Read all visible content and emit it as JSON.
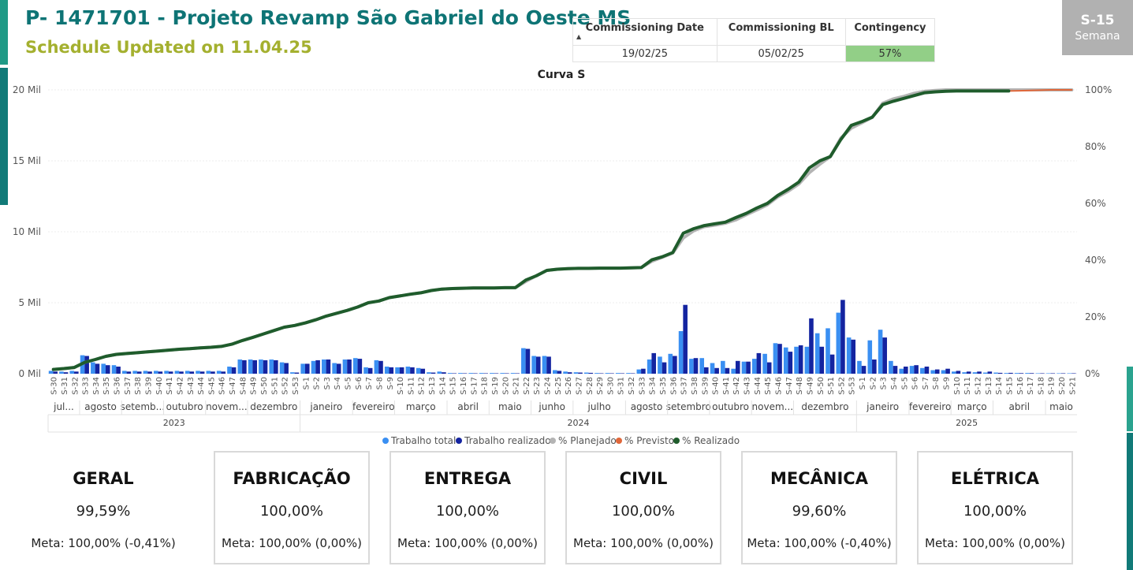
{
  "header": {
    "title": "P- 1471701 - Projeto Revamp São Gabriel do Oeste MS",
    "subtitle": "Schedule Updated on 11.04.25"
  },
  "kpi_table": {
    "headers": [
      "Commissioning Date",
      "Commissioning BL",
      "Contingency"
    ],
    "values": [
      "19/02/25",
      "05/02/25",
      "57%"
    ],
    "sort_icon": "sort-up-icon"
  },
  "week_badge": {
    "week": "S-15",
    "label": "Semana"
  },
  "colors": {
    "teal": "#0e7475",
    "olive": "#a4b02f",
    "bar_total": "#3a8ff2",
    "bar_done": "#1424a0",
    "planned": "#b4b4b4",
    "forecast": "#e0673a",
    "actual": "#1f5c2c",
    "green_cell": "#92cf87"
  },
  "chart_data": {
    "type": "bar",
    "title": "Curva S",
    "y_left": {
      "ticks": [
        "0 Mil",
        "5 Mil",
        "10 Mil",
        "15 Mil",
        "20 Mil"
      ],
      "range": [
        0,
        20000
      ]
    },
    "y_right": {
      "ticks": [
        "0%",
        "20%",
        "40%",
        "60%",
        "80%",
        "100%"
      ],
      "range": [
        0,
        100
      ]
    },
    "categories": [
      "S-30",
      "S-31",
      "S-32",
      "S-33",
      "S-34",
      "S-35",
      "S-36",
      "S-37",
      "S-38",
      "S-39",
      "S-40",
      "S-41",
      "S-42",
      "S-43",
      "S-44",
      "S-45",
      "S-46",
      "S-47",
      "S-48",
      "S-49",
      "S-50",
      "S-51",
      "S-52",
      "S-53",
      "S-1",
      "S-2",
      "S-3",
      "S-4",
      "S-5",
      "S-6",
      "S-7",
      "S-8",
      "S-9",
      "S-10",
      "S-11",
      "S-12",
      "S-13",
      "S-14",
      "S-15",
      "S-16",
      "S-17",
      "S-18",
      "S-19",
      "S-20",
      "S-21",
      "S-22",
      "S-23",
      "S-24",
      "S-25",
      "S-26",
      "S-27",
      "S-28",
      "S-29",
      "S-30",
      "S-31",
      "S-32",
      "S-33",
      "S-34",
      "S-35",
      "S-36",
      "S-37",
      "S-38",
      "S-39",
      "S-40",
      "S-41",
      "S-42",
      "S-43",
      "S-44",
      "S-45",
      "S-46",
      "S-47",
      "S-48",
      "S-49",
      "S-50",
      "S-51",
      "S-52",
      "S-53",
      "S-1",
      "S-2",
      "S-3",
      "S-4",
      "S-5",
      "S-6",
      "S-7",
      "S-8",
      "S-9",
      "S-10",
      "S-11",
      "S-12",
      "S-13",
      "S-14",
      "S-15",
      "S-16",
      "S-17",
      "S-18",
      "S-19",
      "S-20",
      "S-21"
    ],
    "months": [
      {
        "label": "jul...",
        "start": 0,
        "end": 2
      },
      {
        "label": "agosto",
        "start": 3,
        "end": 6
      },
      {
        "label": "setemb...",
        "start": 7,
        "end": 10
      },
      {
        "label": "outubro",
        "start": 11,
        "end": 14
      },
      {
        "label": "novem...",
        "start": 15,
        "end": 18
      },
      {
        "label": "dezembro",
        "start": 19,
        "end": 23
      },
      {
        "label": "janeiro",
        "start": 24,
        "end": 28
      },
      {
        "label": "fevereiro",
        "start": 29,
        "end": 32
      },
      {
        "label": "março",
        "start": 33,
        "end": 37
      },
      {
        "label": "abril",
        "start": 38,
        "end": 41
      },
      {
        "label": "maio",
        "start": 42,
        "end": 45
      },
      {
        "label": "junho",
        "start": 46,
        "end": 49
      },
      {
        "label": "julho",
        "start": 50,
        "end": 54
      },
      {
        "label": "agosto",
        "start": 55,
        "end": 58
      },
      {
        "label": "setembro",
        "start": 59,
        "end": 62
      },
      {
        "label": "outubro",
        "start": 63,
        "end": 66
      },
      {
        "label": "novem...",
        "start": 67,
        "end": 70
      },
      {
        "label": "dezembro",
        "start": 71,
        "end": 76
      },
      {
        "label": "janeiro",
        "start": 77,
        "end": 81
      },
      {
        "label": "fevereiro",
        "start": 82,
        "end": 85
      },
      {
        "label": "março",
        "start": 86,
        "end": 89
      },
      {
        "label": "abril",
        "start": 90,
        "end": 94
      },
      {
        "label": "maio",
        "start": 95,
        "end": 97
      }
    ],
    "years": [
      {
        "label": "2023",
        "start": 0,
        "end": 23
      },
      {
        "label": "2024",
        "start": 24,
        "end": 76
      },
      {
        "label": "2025",
        "start": 77,
        "end": 97
      }
    ],
    "series": [
      {
        "name": "Trabalho total",
        "type": "bar",
        "values": [
          200,
          150,
          200,
          1300,
          800,
          700,
          600,
          200,
          200,
          200,
          200,
          200,
          200,
          200,
          200,
          200,
          200,
          500,
          1000,
          1000,
          1000,
          1000,
          800,
          100,
          700,
          900,
          1000,
          750,
          1000,
          1100,
          450,
          950,
          500,
          450,
          500,
          400,
          100,
          150,
          50,
          50,
          50,
          50,
          50,
          50,
          50,
          1800,
          1250,
          1250,
          250,
          150,
          100,
          80,
          50,
          50,
          50,
          50,
          300,
          1000,
          1200,
          1400,
          3000,
          1050,
          1100,
          750,
          900,
          350,
          850,
          1050,
          1400,
          2150,
          1850,
          1900,
          1900,
          2850,
          3200,
          4300,
          2550,
          900,
          2350,
          3100,
          900,
          350,
          550,
          400,
          250,
          250,
          150,
          100,
          100,
          80,
          80,
          50,
          50,
          50,
          30,
          30,
          30,
          30
        ]
      },
      {
        "name": "Trabalho realizado",
        "type": "bar",
        "values": [
          150,
          100,
          150,
          1250,
          700,
          600,
          500,
          150,
          150,
          150,
          150,
          150,
          150,
          150,
          150,
          150,
          150,
          450,
          950,
          950,
          950,
          950,
          750,
          80,
          700,
          950,
          1000,
          700,
          1000,
          1050,
          400,
          900,
          450,
          450,
          450,
          350,
          80,
          100,
          30,
          30,
          30,
          30,
          30,
          30,
          30,
          1750,
          1200,
          1200,
          200,
          100,
          80,
          60,
          30,
          30,
          30,
          30,
          350,
          1450,
          800,
          1250,
          4850,
          1100,
          450,
          400,
          400,
          900,
          850,
          1450,
          800,
          2100,
          1550,
          2000,
          3900,
          1900,
          1350,
          5200,
          2400,
          550,
          1000,
          2550,
          550,
          500,
          600,
          500,
          300,
          350,
          200,
          150,
          150,
          150,
          60,
          60,
          40,
          40,
          30,
          30,
          30,
          30
        ]
      },
      {
        "name": "% Planejado",
        "type": "line",
        "values": [
          1.5,
          1.8,
          2.2,
          4,
          5,
          6.1,
          6.8,
          7.1,
          7.4,
          7.7,
          8,
          8.3,
          8.6,
          8.8,
          9.1,
          9.3,
          9.6,
          10.4,
          11.7,
          12.8,
          14,
          15.2,
          16.4,
          17,
          17.9,
          19,
          20.3,
          21.3,
          22.3,
          23.5,
          25,
          25.6,
          26.8,
          27.4,
          28,
          28.5,
          29.3,
          29.8,
          30,
          30.1,
          30.2,
          30.2,
          30.2,
          30.3,
          30.3,
          32.5,
          34.5,
          36.4,
          36.8,
          37,
          37.1,
          37.1,
          37.2,
          37.2,
          37.2,
          37.3,
          37.4,
          39.6,
          41,
          42.5,
          47.8,
          50.4,
          51.8,
          52.3,
          53,
          54.2,
          56,
          57.7,
          59.5,
          62.3,
          64.3,
          66.8,
          70.8,
          73.8,
          76.5,
          83,
          86.5,
          88.4,
          90.3,
          95.3,
          96.8,
          97.7,
          98.8,
          99.5,
          99.8,
          100,
          100,
          100,
          100,
          100,
          100,
          100,
          100,
          100,
          100,
          100,
          100,
          100
        ]
      },
      {
        "name": "% Previsto",
        "type": "line",
        "values": [
          null,
          null,
          null,
          null,
          null,
          null,
          null,
          null,
          null,
          null,
          null,
          null,
          null,
          null,
          null,
          null,
          null,
          null,
          null,
          null,
          null,
          null,
          null,
          null,
          null,
          null,
          null,
          null,
          null,
          null,
          null,
          null,
          null,
          null,
          null,
          null,
          null,
          null,
          null,
          null,
          null,
          null,
          null,
          null,
          null,
          null,
          null,
          null,
          null,
          null,
          null,
          null,
          null,
          null,
          null,
          null,
          null,
          null,
          null,
          null,
          null,
          null,
          null,
          null,
          null,
          null,
          null,
          null,
          null,
          null,
          null,
          null,
          null,
          null,
          null,
          null,
          null,
          null,
          null,
          null,
          null,
          null,
          null,
          null,
          null,
          null,
          null,
          null,
          null,
          null,
          null,
          99.6,
          99.7,
          99.8,
          99.9,
          100,
          100,
          100
        ]
      },
      {
        "name": "% Realizado",
        "type": "line",
        "values": [
          1.5,
          1.8,
          2.2,
          4,
          5,
          6.1,
          6.8,
          7.1,
          7.4,
          7.7,
          8,
          8.3,
          8.6,
          8.8,
          9.1,
          9.3,
          9.6,
          10.4,
          11.7,
          12.8,
          14,
          15.2,
          16.4,
          17,
          17.9,
          19,
          20.3,
          21.3,
          22.3,
          23.5,
          25,
          25.6,
          26.8,
          27.4,
          28,
          28.5,
          29.3,
          29.8,
          30,
          30.1,
          30.2,
          30.2,
          30.2,
          30.3,
          30.3,
          33,
          34.5,
          36.4,
          36.8,
          37,
          37.1,
          37.1,
          37.2,
          37.2,
          37.2,
          37.3,
          37.4,
          40.1,
          41.2,
          42.7,
          49.5,
          51.1,
          52.2,
          52.8,
          53.4,
          55,
          56.5,
          58.4,
          60,
          62.8,
          65,
          67.5,
          72.5,
          75,
          76.5,
          82.5,
          87.5,
          88.8,
          90.4,
          94.8,
          96,
          97,
          98,
          99,
          99.3,
          99.5,
          99.6,
          99.6,
          99.6,
          99.6,
          99.6,
          99.6,
          null,
          null,
          null,
          null,
          null,
          null
        ]
      }
    ],
    "legend": {
      "position": "bottom-center"
    }
  },
  "cards": [
    {
      "title": "GERAL",
      "value": "99,59%",
      "meta": "Meta: 100,00% (-0,41%)"
    },
    {
      "title": "FABRICAÇÃO",
      "value": "100,00%",
      "meta": "Meta: 100,00% (0,00%)"
    },
    {
      "title": "ENTREGA",
      "value": "100,00%",
      "meta": "Meta: 100,00% (0,00%)"
    },
    {
      "title": "CIVIL",
      "value": "100,00%",
      "meta": "Meta: 100,00% (0,00%)"
    },
    {
      "title": "MECÂNICA",
      "value": "99,60%",
      "meta": "Meta: 100,00% (-0,40%)"
    },
    {
      "title": "ELÉTRICA",
      "value": "100,00%",
      "meta": "Meta: 100,00% (0,00%)"
    }
  ]
}
